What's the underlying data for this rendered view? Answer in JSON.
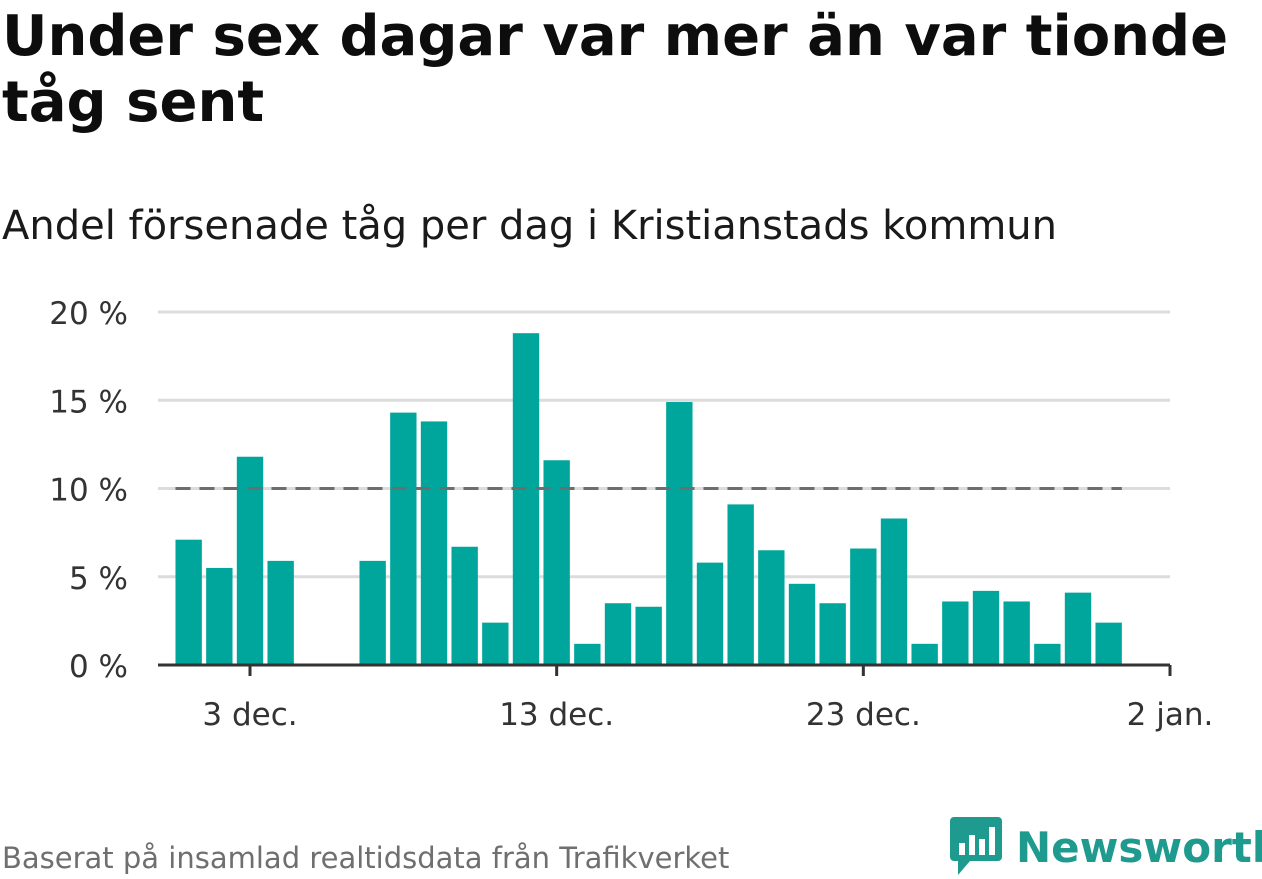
{
  "title": "Under sex dagar var mer än var tionde tåg sent",
  "subtitle": "Andel försenade tåg per dag i Kristianstads kommun",
  "footer": "Baserat på insamlad realtidsdata från Trafikverket",
  "brand": {
    "name": "Newsworthy",
    "icon": "bar-chart-bubble-icon"
  },
  "colors": {
    "bar": "#00a69c",
    "reference_line": "#6d6d6d",
    "grid": "#dcdcdc",
    "axis": "#333333",
    "brand": "#1e9a8e"
  },
  "chart_data": {
    "type": "bar",
    "title": "",
    "xlabel": "",
    "ylabel": "",
    "ylim": [
      0,
      20
    ],
    "yticks": [
      0,
      5,
      10,
      15,
      20
    ],
    "ytick_labels": [
      "0 %",
      "5 %",
      "10 %",
      "15 %",
      "20 %"
    ],
    "x_start": "2020-11-30",
    "x_end": "2021-01-02",
    "xticks": [
      "2020-12-03",
      "2020-12-13",
      "2020-12-23",
      "2021-01-02"
    ],
    "xtick_labels": [
      "3 dec.",
      "13 dec.",
      "23 dec.",
      "2 jan."
    ],
    "grid": true,
    "reference_line": 10,
    "series": [
      {
        "x": [
          "2020-12-01",
          "2020-12-02",
          "2020-12-03",
          "2020-12-04",
          "2020-12-05",
          "2020-12-06",
          "2020-12-07",
          "2020-12-08",
          "2020-12-09",
          "2020-12-10",
          "2020-12-11",
          "2020-12-12",
          "2020-12-13",
          "2020-12-14",
          "2020-12-15",
          "2020-12-16",
          "2020-12-17",
          "2020-12-18",
          "2020-12-19",
          "2020-12-20",
          "2020-12-21",
          "2020-12-22",
          "2020-12-23",
          "2020-12-24",
          "2020-12-25",
          "2020-12-26",
          "2020-12-27",
          "2020-12-28",
          "2020-12-29",
          "2020-12-30",
          "2020-12-31",
          "2021-01-01"
        ],
        "values": [
          7.1,
          5.5,
          11.8,
          5.9,
          0,
          0,
          5.9,
          14.3,
          13.8,
          6.7,
          2.4,
          18.8,
          11.6,
          1.2,
          3.5,
          3.3,
          14.9,
          5.8,
          9.1,
          6.5,
          4.6,
          3.5,
          6.6,
          8.3,
          1.2,
          3.6,
          4.2,
          3.6,
          1.2,
          4.1,
          2.4,
          0
        ]
      }
    ]
  }
}
